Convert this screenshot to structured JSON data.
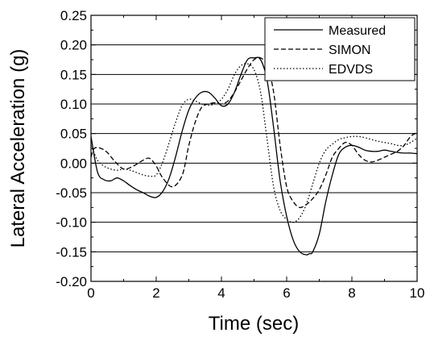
{
  "chart_data": {
    "type": "line",
    "title": "",
    "xlabel": "Time (sec)",
    "ylabel": "Lateral Acceleration (g)",
    "xlim": [
      0,
      10
    ],
    "ylim": [
      -0.2,
      0.25
    ],
    "x_ticks": [
      0,
      2,
      4,
      6,
      8,
      10
    ],
    "x_tick_labels": [
      "0",
      "2",
      "4",
      "6",
      "8",
      "10"
    ],
    "y_ticks": [
      -0.2,
      -0.15,
      -0.1,
      -0.05,
      0.0,
      0.05,
      0.1,
      0.15,
      0.2,
      0.25
    ],
    "y_tick_labels": [
      "-0.20",
      "-0.15",
      "-0.10",
      "-0.05",
      "0.00",
      "0.05",
      "0.10",
      "0.15",
      "0.20",
      "0.25"
    ],
    "horizontal_gridlines": true,
    "legend_position": "top-right",
    "series": [
      {
        "name": "Measured",
        "line_style": "solid",
        "x": [
          0,
          0.2,
          0.4,
          0.6,
          0.8,
          1.0,
          1.2,
          1.4,
          1.6,
          1.8,
          2.0,
          2.2,
          2.4,
          2.6,
          2.8,
          3.0,
          3.2,
          3.4,
          3.6,
          3.8,
          4.0,
          4.2,
          4.4,
          4.6,
          4.8,
          5.0,
          5.2,
          5.4,
          5.6,
          5.8,
          6.0,
          6.2,
          6.4,
          6.6,
          6.7,
          6.8,
          7.0,
          7.2,
          7.4,
          7.6,
          7.8,
          8.0,
          8.2,
          8.4,
          8.6,
          8.8,
          9.0,
          9.2,
          9.4,
          9.6,
          9.8,
          10.0
        ],
        "y": [
          0.045,
          -0.015,
          -0.028,
          -0.03,
          -0.025,
          -0.03,
          -0.038,
          -0.045,
          -0.05,
          -0.056,
          -0.058,
          -0.048,
          -0.025,
          0.012,
          0.055,
          0.09,
          0.11,
          0.12,
          0.12,
          0.11,
          0.097,
          0.1,
          0.12,
          0.15,
          0.175,
          0.178,
          0.175,
          0.14,
          0.06,
          -0.03,
          -0.09,
          -0.13,
          -0.15,
          -0.155,
          -0.153,
          -0.15,
          -0.12,
          -0.065,
          -0.02,
          0.015,
          0.027,
          0.03,
          0.027,
          0.022,
          0.02,
          0.02,
          0.022,
          0.02,
          0.018,
          0.017,
          0.017,
          0.016
        ]
      },
      {
        "name": "SIMON",
        "line_style": "dashed",
        "x": [
          0,
          0.1,
          0.3,
          0.5,
          0.7,
          1.0,
          1.3,
          1.6,
          1.8,
          2.0,
          2.2,
          2.5,
          2.8,
          3.0,
          3.2,
          3.4,
          3.6,
          3.8,
          4.0,
          4.2,
          4.4,
          4.6,
          4.8,
          5.0,
          5.2,
          5.4,
          5.6,
          5.8,
          6.0,
          6.2,
          6.4,
          6.6,
          6.8,
          7.0,
          7.2,
          7.4,
          7.6,
          7.8,
          8.0,
          8.2,
          8.4,
          8.6,
          8.8,
          9.0,
          9.2,
          9.4,
          9.6,
          9.8,
          10.0
        ],
        "y": [
          0.01,
          0.025,
          0.025,
          0.018,
          0.005,
          -0.01,
          -0.005,
          0.005,
          0.008,
          -0.005,
          -0.025,
          -0.04,
          -0.02,
          0.03,
          0.07,
          0.095,
          0.1,
          0.102,
          0.1,
          0.105,
          0.12,
          0.14,
          0.16,
          0.175,
          0.178,
          0.165,
          0.12,
          0.03,
          -0.04,
          -0.065,
          -0.075,
          -0.07,
          -0.06,
          -0.045,
          -0.02,
          0.01,
          0.025,
          0.035,
          0.03,
          0.015,
          0.005,
          0.002,
          0.005,
          0.01,
          0.015,
          0.02,
          0.03,
          0.045,
          0.052
        ]
      },
      {
        "name": "EDVDS",
        "line_style": "dotted",
        "x": [
          0,
          0.2,
          0.4,
          0.6,
          0.8,
          1.0,
          1.2,
          1.4,
          1.6,
          1.8,
          2.0,
          2.2,
          2.4,
          2.6,
          2.8,
          3.0,
          3.2,
          3.4,
          3.6,
          3.8,
          4.0,
          4.2,
          4.4,
          4.6,
          4.8,
          5.0,
          5.2,
          5.4,
          5.6,
          5.8,
          6.0,
          6.2,
          6.4,
          6.6,
          6.8,
          7.0,
          7.2,
          7.4,
          7.6,
          7.8,
          8.0,
          8.2,
          8.4,
          8.6,
          8.8,
          9.0,
          9.2,
          9.4,
          9.6,
          9.8,
          10.0
        ],
        "y": [
          0.03,
          0.005,
          -0.005,
          -0.01,
          -0.012,
          -0.01,
          -0.012,
          -0.016,
          -0.02,
          -0.022,
          -0.02,
          0.002,
          0.035,
          0.07,
          0.098,
          0.108,
          0.105,
          0.1,
          0.098,
          0.1,
          0.108,
          0.125,
          0.15,
          0.165,
          0.168,
          0.158,
          0.12,
          0.04,
          -0.04,
          -0.08,
          -0.095,
          -0.1,
          -0.092,
          -0.07,
          -0.035,
          0.0,
          0.022,
          0.032,
          0.04,
          0.043,
          0.045,
          0.045,
          0.043,
          0.04,
          0.037,
          0.035,
          0.033,
          0.03,
          0.03,
          0.035,
          0.042
        ]
      }
    ]
  }
}
